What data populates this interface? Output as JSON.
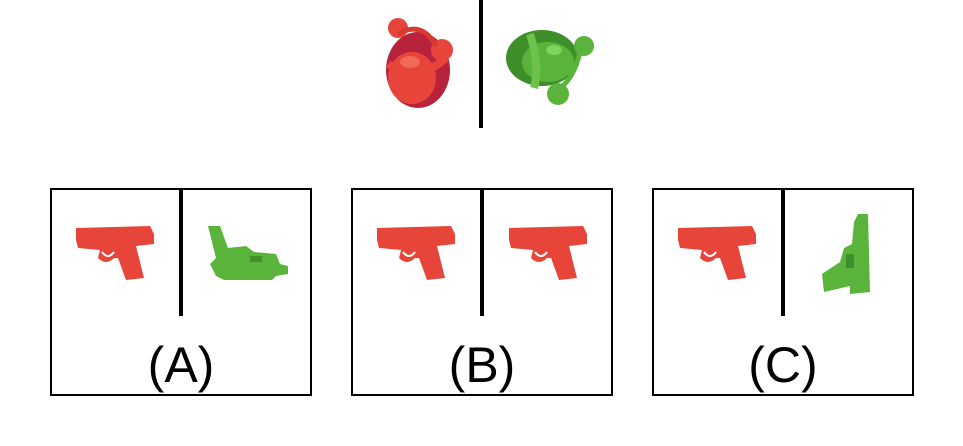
{
  "colors": {
    "red": "#e8453a",
    "red_dark": "#b8223a",
    "green": "#5ab43c",
    "green_dark": "#3e8f2a",
    "line": "#000000"
  },
  "reference": {
    "left_object": "red-bucket-object",
    "right_object": "green-bucket-object"
  },
  "options": [
    {
      "label": "(A)",
      "left_icon": "red-pistol-icon",
      "right_icon": "green-pistol-rotated-icon"
    },
    {
      "label": "(B)",
      "left_icon": "red-pistol-icon",
      "right_icon": "red-pistol-icon"
    },
    {
      "label": "(C)",
      "left_icon": "red-pistol-icon",
      "right_icon": "green-pistol-vertical-icon"
    }
  ]
}
